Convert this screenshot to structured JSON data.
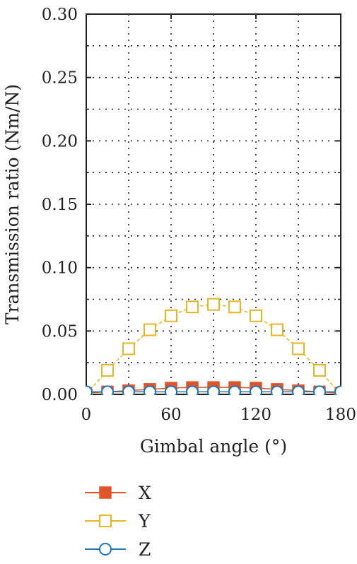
{
  "chart_data": {
    "type": "line",
    "xlabel": "Gimbal angle (°)",
    "ylabel": "Transmission ratio (Nm/N)",
    "xlim": [
      0,
      180
    ],
    "ylim": [
      0,
      0.3
    ],
    "xticks": [
      0,
      60,
      120,
      180
    ],
    "xtick_labels": [
      "0",
      "60",
      "120",
      "180"
    ],
    "yticks": [
      0,
      0.05,
      0.1,
      0.15,
      0.2,
      0.25,
      0.3
    ],
    "ytick_labels": [
      "0.00",
      "0.05",
      "0.10",
      "0.15",
      "0.20",
      "0.25",
      "0.30"
    ],
    "grid": true,
    "legend_position": "below",
    "x": [
      0,
      15,
      30,
      45,
      60,
      75,
      90,
      105,
      120,
      135,
      150,
      165,
      180
    ],
    "series": [
      {
        "name": "X",
        "color": "#E0542A",
        "marker": "filled-square",
        "values": [
          0.001,
          0.002,
          0.003,
          0.004,
          0.005,
          0.0055,
          0.0055,
          0.0055,
          0.005,
          0.004,
          0.003,
          0.002,
          0.001
        ]
      },
      {
        "name": "Y",
        "color": "#E8B526",
        "marker": "open-square",
        "values": [
          0.0,
          0.019,
          0.036,
          0.051,
          0.062,
          0.069,
          0.071,
          0.069,
          0.062,
          0.051,
          0.036,
          0.019,
          0.0
        ]
      },
      {
        "name": "Z",
        "color": "#1F77B4",
        "marker": "open-circle",
        "values": [
          0.002,
          0.002,
          0.002,
          0.002,
          0.002,
          0.002,
          0.002,
          0.002,
          0.002,
          0.002,
          0.002,
          0.002,
          0.002
        ]
      }
    ]
  }
}
